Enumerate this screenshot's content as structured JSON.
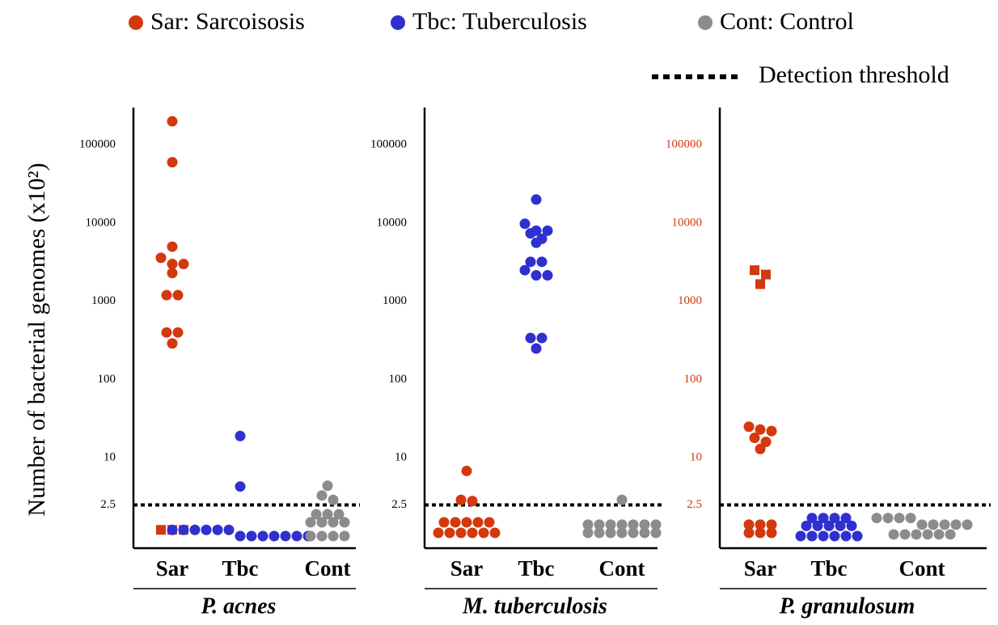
{
  "legend": [
    {
      "name": "Sar: Sarcoisosis",
      "color": "#d4380d"
    },
    {
      "name": "Tbc: Tuberculosis",
      "color": "#3030d0"
    },
    {
      "name": "Cont: Control",
      "color": "#8c8c8c"
    }
  ],
  "threshold_label": "Detection threshold",
  "y_label": "Number of bacterial genomes (x10²)",
  "chart_data": [
    {
      "type": "scatter",
      "title": "P. acnes",
      "log_y": true,
      "threshold": 2.5,
      "tick_color": "#000000",
      "categories": [
        "Sar",
        "Tbc",
        "Cont"
      ],
      "ylim": [
        0.7,
        300000
      ],
      "yticks": [
        2.5,
        10,
        100,
        1000,
        10000,
        100000
      ],
      "series": [
        {
          "color": "#d4380d",
          "values": [
            200000,
            60000,
            5000,
            3600,
            3000,
            3000,
            2300,
            1200,
            1200,
            400,
            400,
            290,
            1.2,
            1.2,
            1.2
          ],
          "markers": [
            "circle",
            "circle",
            "circle",
            "circle",
            "circle",
            "circle",
            "circle",
            "circle",
            "circle",
            "circle",
            "circle",
            "circle",
            "square",
            "square",
            "square"
          ]
        },
        {
          "color": "#3030d0",
          "values": [
            19,
            4.3,
            1.2,
            1.2,
            1.2,
            1.2,
            1.2,
            1.2,
            1.0,
            1.0,
            1.0,
            1.0,
            1.0,
            1.0,
            1.0
          ]
        },
        {
          "color": "#8c8c8c",
          "values": [
            4.4,
            3.3,
            2.9,
            1.9,
            1.9,
            1.9,
            1.5,
            1.5,
            1.5,
            1.5,
            1.0,
            1.0,
            1.0,
            1.0
          ]
        }
      ]
    },
    {
      "type": "scatter",
      "title": "M. tuberculosis",
      "log_y": true,
      "threshold": 2.5,
      "tick_color": "#000000",
      "categories": [
        "Sar",
        "Tbc",
        "Cont"
      ],
      "ylim": [
        0.7,
        300000
      ],
      "yticks": [
        2.5,
        10,
        100,
        1000,
        10000,
        100000
      ],
      "series": [
        {
          "color": "#d4380d",
          "values": [
            6.8,
            2.9,
            2.8,
            1.5,
            1.5,
            1.5,
            1.5,
            1.5,
            1.1,
            1.1,
            1.1,
            1.1,
            1.1,
            1.1
          ]
        },
        {
          "color": "#3030d0",
          "values": [
            20000,
            9800,
            8000,
            8000,
            7400,
            6300,
            5600,
            3200,
            3200,
            2500,
            2150,
            2150,
            340,
            340,
            250
          ]
        },
        {
          "color": "#8c8c8c",
          "values": [
            2.9,
            1.4,
            1.4,
            1.4,
            1.4,
            1.4,
            1.4,
            1.4,
            1.1,
            1.1,
            1.1,
            1.1,
            1.1,
            1.1,
            1.1
          ]
        }
      ]
    },
    {
      "type": "scatter",
      "title": "P. granulosum",
      "log_y": true,
      "threshold": 2.5,
      "tick_color": "#d4380d",
      "categories": [
        "Sar",
        "Tbc",
        "Cont"
      ],
      "ylim": [
        0.7,
        300000
      ],
      "yticks": [
        2.5,
        10,
        100,
        1000,
        10000,
        100000
      ],
      "series": [
        {
          "color": "#d4380d",
          "values": [
            2500,
            2200,
            1660,
            25,
            23,
            22,
            18,
            16,
            13,
            1.4,
            1.4,
            1.4,
            1.1,
            1.1,
            1.1
          ],
          "markers": [
            "square",
            "square",
            "square",
            "circle",
            "circle",
            "circle",
            "circle",
            "circle",
            "circle",
            "circle",
            "circle",
            "circle",
            "circle",
            "circle",
            "circle"
          ]
        },
        {
          "color": "#3030d0",
          "values": [
            1.7,
            1.7,
            1.7,
            1.7,
            1.35,
            1.35,
            1.35,
            1.35,
            1.35,
            1.0,
            1.0,
            1.0,
            1.0,
            1.0,
            1.0
          ]
        },
        {
          "color": "#8c8c8c",
          "values": [
            1.7,
            1.7,
            1.7,
            1.7,
            1.4,
            1.4,
            1.4,
            1.4,
            1.4,
            1.05,
            1.05,
            1.05,
            1.05,
            1.05,
            1.05
          ]
        }
      ]
    }
  ]
}
